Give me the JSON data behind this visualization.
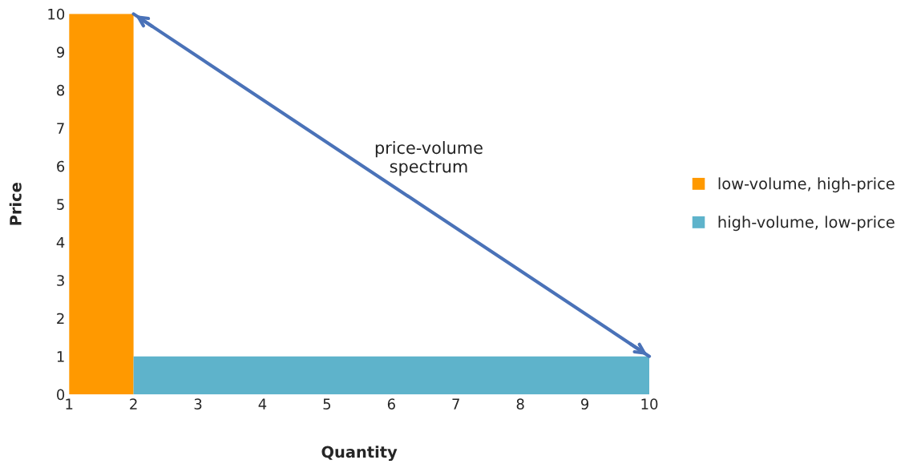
{
  "chart_data": {
    "type": "area",
    "xlabel": "Quantity",
    "ylabel": "Price",
    "series": [
      {
        "name": "low-volume, high-price",
        "color": "#ff9900",
        "x": [
          1,
          2
        ],
        "values": [
          10,
          10
        ]
      },
      {
        "name": "high-volume, low-price",
        "color": "#5eb3cb",
        "x": [
          2,
          10
        ],
        "values": [
          1,
          1
        ]
      },
      {
        "type": "line",
        "color": "#4a72b8",
        "x": [
          2,
          10
        ],
        "values": [
          10,
          1
        ]
      }
    ],
    "annotations": [
      "price-volume\nspectrum"
    ],
    "xlim": [
      1,
      10
    ],
    "ylim": [
      0,
      10
    ],
    "xticks": [
      1,
      2,
      3,
      4,
      5,
      6,
      7,
      8,
      9,
      10
    ],
    "yticks": [
      0,
      1,
      2,
      3,
      4,
      5,
      6,
      7,
      8,
      9,
      10
    ],
    "grid": false,
    "legend": "right"
  }
}
